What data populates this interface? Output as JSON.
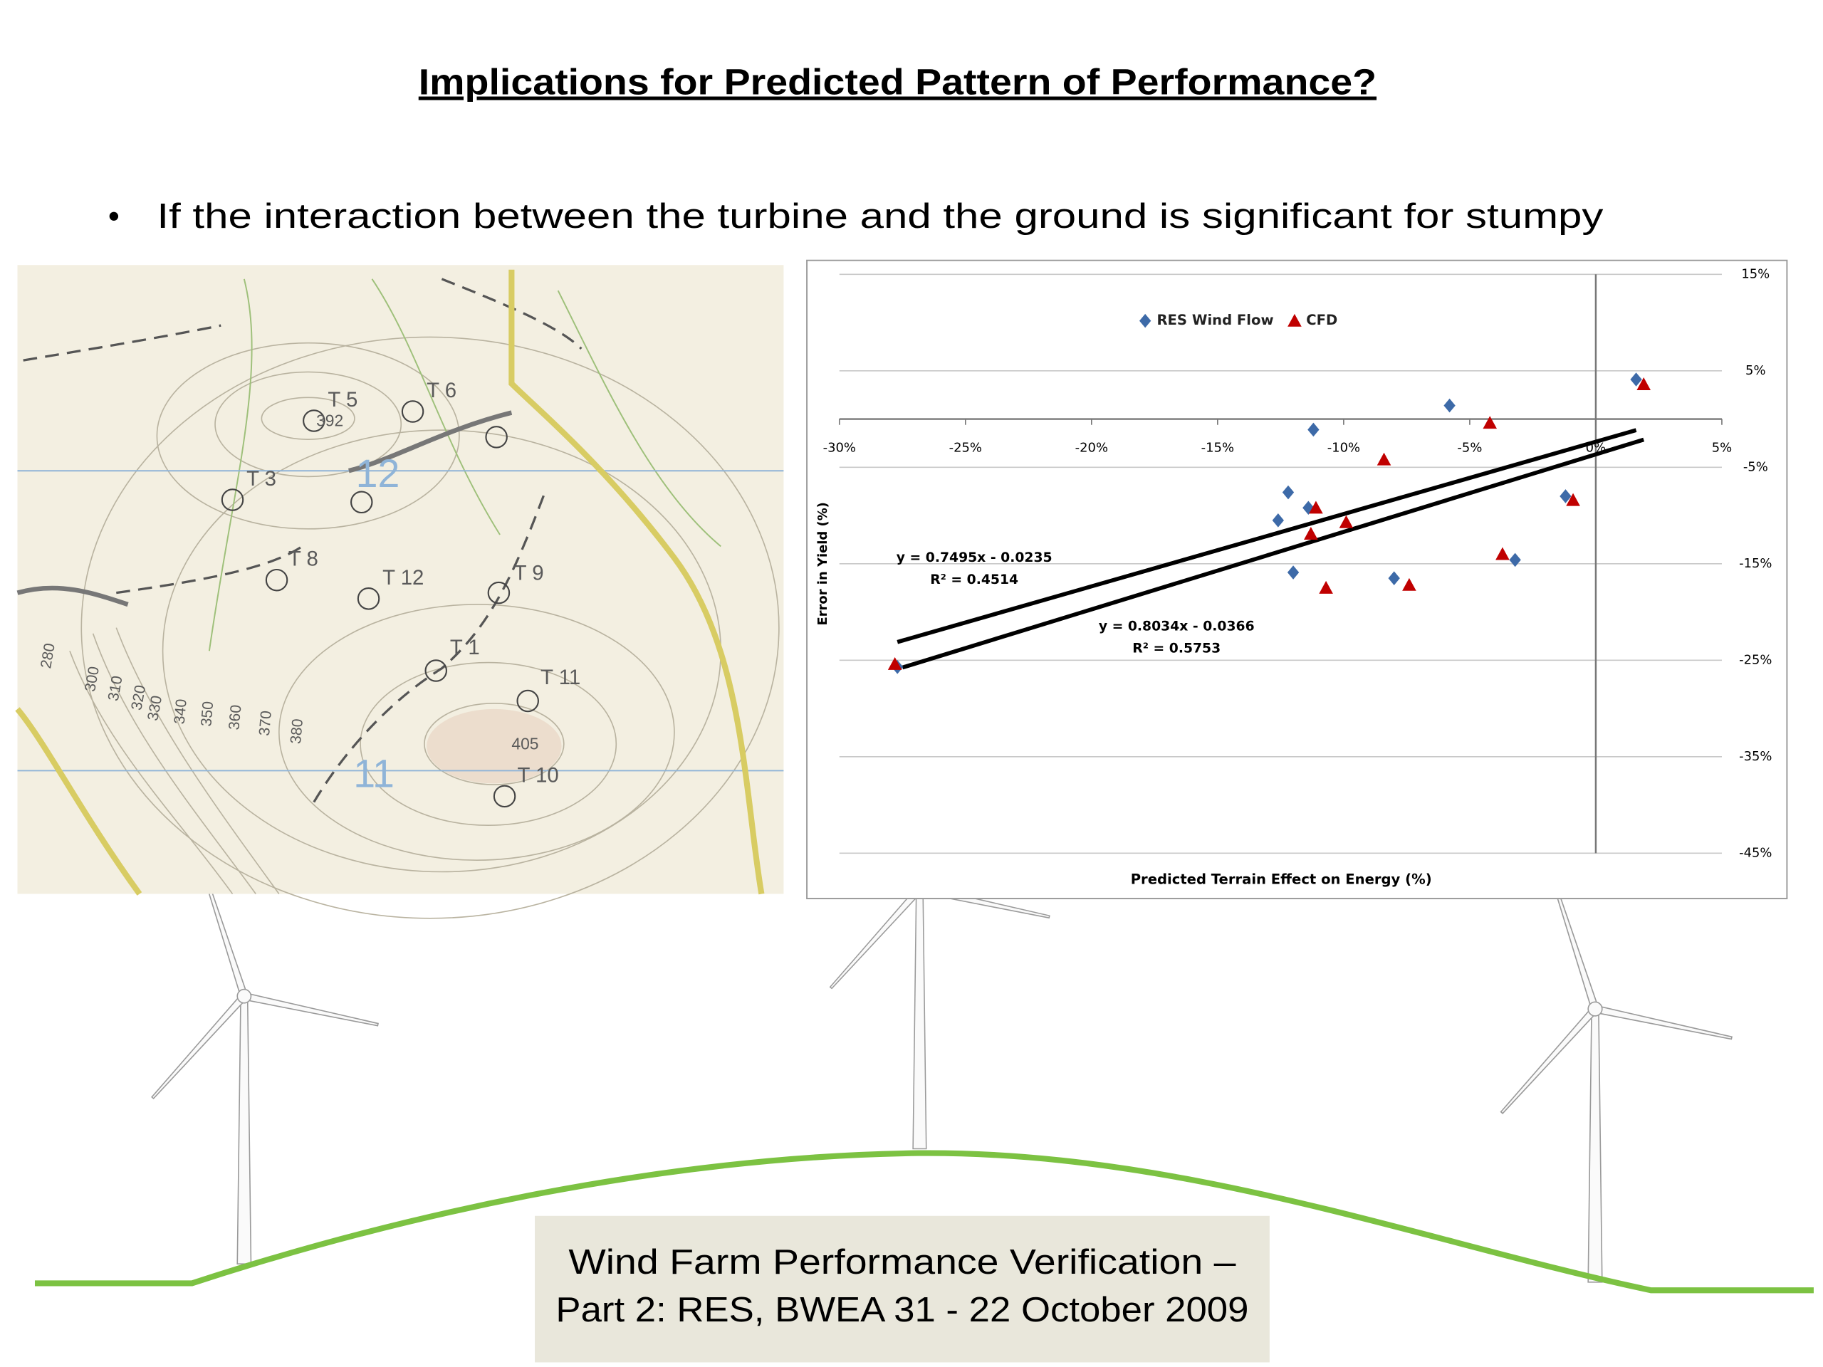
{
  "title": "Implications for Predicted Pattern of Performance?",
  "bullets": [
    "If the interaction between the turbine and the ground is significant for stumpy"
  ],
  "map": {
    "labels": [
      "T 5",
      "392",
      "T 6",
      "T 3",
      "12",
      "T 8",
      "T 12",
      "T 9",
      "T 1",
      "T 11",
      "405",
      "T 10",
      "11",
      "280",
      "300",
      "310",
      "320",
      "330",
      "340",
      "350",
      "360",
      "370",
      "380"
    ]
  },
  "footer": [
    "Wind Farm Performance Verification –",
    "Part 2: RES, BWEA 31 - 22 October 2009"
  ],
  "chart_data": {
    "type": "scatter",
    "x_label": "Predicted Terrain Effect on Energy (%)",
    "y_label": "Error in Yield (%)",
    "legend": "top",
    "grid": true,
    "xlim": [
      -30,
      5
    ],
    "ylim": [
      -45,
      15
    ],
    "xticks": [
      {
        "value": -30,
        "label": "-30%"
      },
      {
        "value": -25,
        "label": "-25%"
      },
      {
        "value": -20,
        "label": "-20%"
      },
      {
        "value": -15,
        "label": "-15%"
      },
      {
        "value": -10,
        "label": "-10%"
      },
      {
        "value": -5,
        "label": "-5%"
      },
      {
        "value": 0,
        "label": "0%"
      },
      {
        "value": 5,
        "label": "5%"
      }
    ],
    "yticks": [
      {
        "value": 15,
        "label": "15%"
      },
      {
        "value": 5,
        "label": "5%"
      },
      {
        "value": -5,
        "label": "-5%"
      },
      {
        "value": -15,
        "label": "-15%"
      },
      {
        "value": -25,
        "label": "-25%"
      },
      {
        "value": -35,
        "label": "-35%"
      },
      {
        "value": -45,
        "label": "-45%"
      }
    ],
    "series": [
      {
        "name": "RES Wind Flow",
        "color": "#3d6aa8",
        "marker": "diamond",
        "x": [
          -27.7,
          -11.2,
          -5.8,
          1.6,
          -12.2,
          -11.4,
          -12.6,
          -12.0,
          -8.0,
          -3.2,
          -1.2
        ],
        "values": [
          -25.7,
          -1.1,
          1.4,
          4.1,
          -7.6,
          -9.2,
          -10.5,
          -15.9,
          -16.5,
          -14.6,
          -8.0
        ]
      },
      {
        "name": "CFD",
        "color": "#c00000",
        "marker": "triangle",
        "x": [
          -27.8,
          -11.1,
          -11.3,
          -9.9,
          -10.7,
          -8.4,
          -7.4,
          -4.2,
          -3.7,
          -0.9,
          1.9
        ],
        "values": [
          -25.4,
          -9.2,
          -11.9,
          -10.7,
          -17.5,
          -4.2,
          -17.2,
          -0.4,
          -14.0,
          -8.4,
          3.6
        ]
      }
    ],
    "trendlines": [
      {
        "label": "y = 0.7495x - 0.0235",
        "r2": "R² = 0.4514",
        "slope": 0.7495,
        "intercept": -2.35,
        "x": [
          -27.7,
          1.6
        ]
      },
      {
        "label": "y = 0.8034x - 0.0366",
        "r2": "R² = 0.5753",
        "slope": 0.8034,
        "intercept": -3.66,
        "x": [
          -27.5,
          1.9
        ]
      }
    ]
  }
}
